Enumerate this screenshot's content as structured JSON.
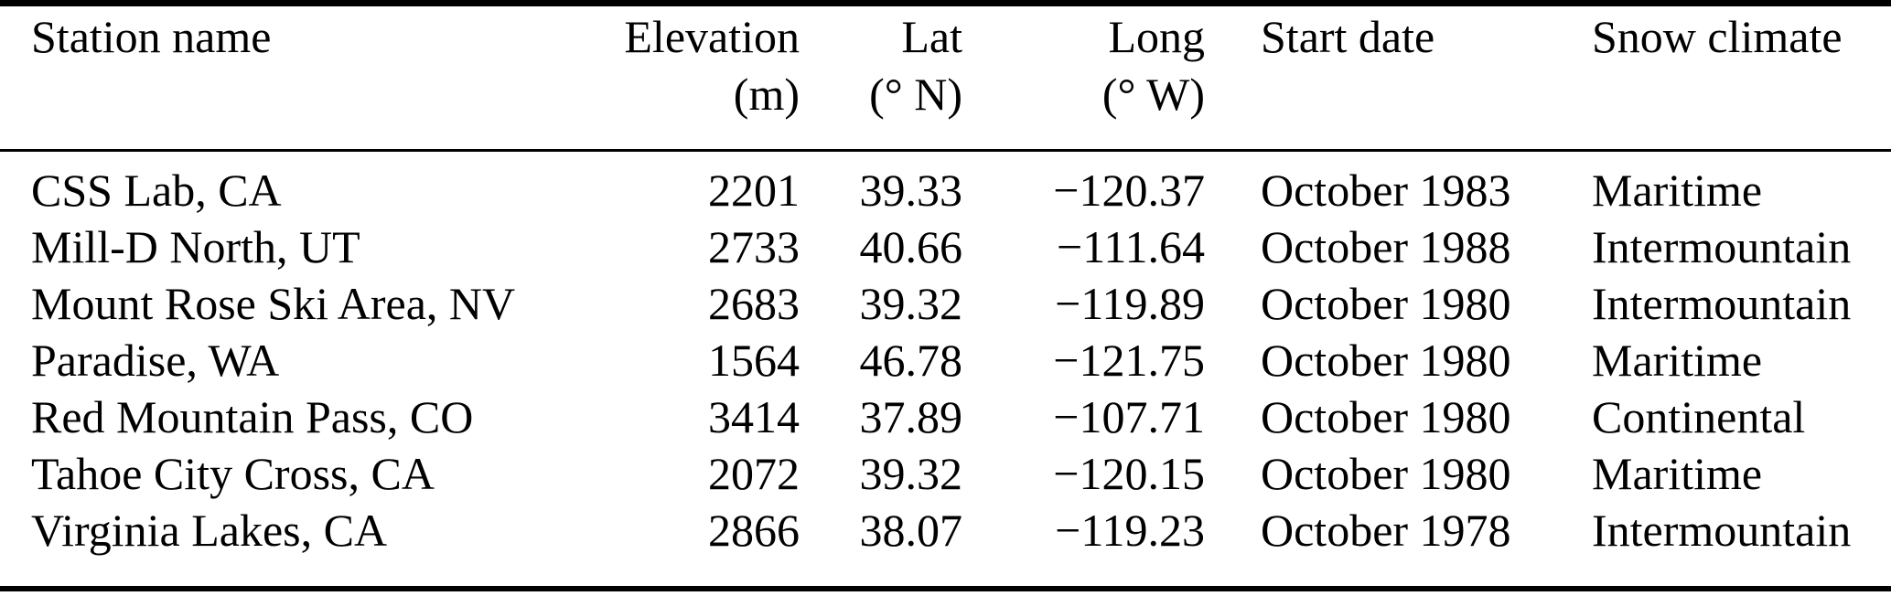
{
  "colors": {
    "text": "#000000",
    "rule": "#000000",
    "background": "#ffffff"
  },
  "table": {
    "columns": [
      {
        "label": "Station name",
        "unit": ""
      },
      {
        "label": "Elevation",
        "unit": "(m)"
      },
      {
        "label": "Lat",
        "unit": "(° N)"
      },
      {
        "label": "Long",
        "unit": "(° W)"
      },
      {
        "label": "Start date",
        "unit": ""
      },
      {
        "label": "Snow climate",
        "unit": ""
      }
    ],
    "rows": [
      [
        "CSS Lab, CA",
        "2201",
        "39.33",
        "−120.37",
        "October 1983",
        "Maritime"
      ],
      [
        "Mill-D North, UT",
        "2733",
        "40.66",
        "−111.64",
        "October 1988",
        "Intermountain"
      ],
      [
        "Mount Rose Ski Area, NV",
        "2683",
        "39.32",
        "−119.89",
        "October 1980",
        "Intermountain"
      ],
      [
        "Paradise, WA",
        "1564",
        "46.78",
        "−121.75",
        "October 1980",
        "Maritime"
      ],
      [
        "Red Mountain Pass, CO",
        "3414",
        "37.89",
        "−107.71",
        "October 1980",
        "Continental"
      ],
      [
        "Tahoe City Cross, CA",
        "2072",
        "39.32",
        "−120.15",
        "October 1980",
        "Maritime"
      ],
      [
        "Virginia Lakes, CA",
        "2866",
        "38.07",
        "−119.23",
        "October 1978",
        "Intermountain"
      ]
    ]
  }
}
